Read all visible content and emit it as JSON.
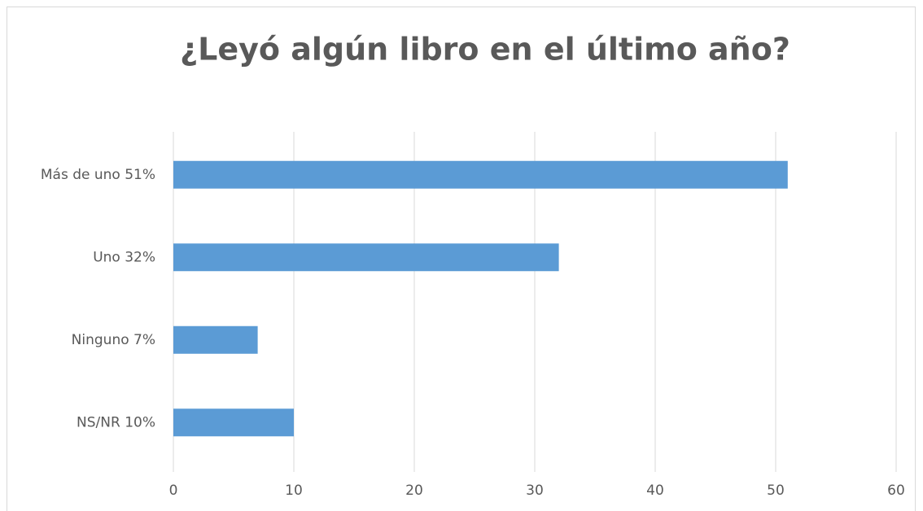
{
  "chart_data": {
    "type": "bar",
    "orientation": "horizontal",
    "title": "¿Leyó algún libro en el último año?",
    "categories": [
      "Más de uno  51%",
      "Uno  32%",
      "Ninguno  7%",
      "NS/NR  10%"
    ],
    "values": [
      51,
      32,
      7,
      10
    ],
    "color": "#5b9bd5",
    "xlim": [
      0,
      60
    ],
    "xticks": [
      0,
      10,
      20,
      30,
      40,
      50,
      60
    ],
    "grid": true
  }
}
